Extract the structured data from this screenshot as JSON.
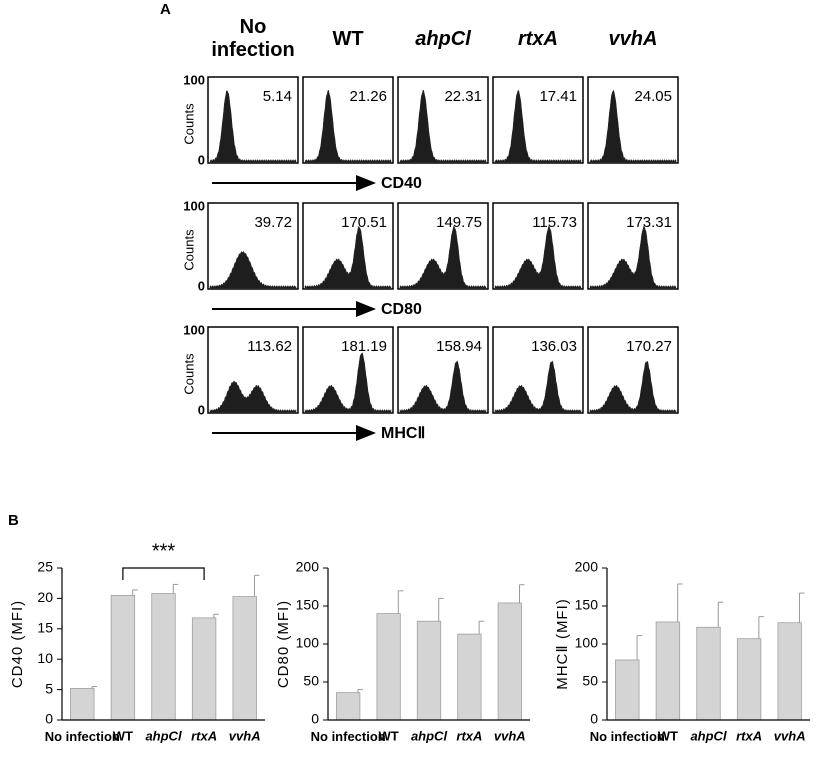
{
  "panel_labels": [
    "A",
    "B"
  ],
  "flow": {
    "columns": [
      "No infection",
      "WT",
      "ahpCl",
      "rtxA",
      "vvhA"
    ],
    "ylabel": "Counts",
    "yticks": [
      0,
      100
    ],
    "rows": [
      {
        "marker": "CD40",
        "values": [
          5.14,
          21.26,
          22.31,
          17.41,
          24.05
        ]
      },
      {
        "marker": "CD80",
        "values": [
          39.72,
          170.51,
          149.75,
          115.73,
          173.31
        ]
      },
      {
        "marker": "MHCⅡ",
        "values": [
          113.62,
          181.19,
          158.94,
          136.03,
          170.27
        ]
      }
    ]
  },
  "chart_data": [
    {
      "type": "bar",
      "ylabel": "CD40 (MFI)",
      "categories": [
        "No infection",
        "WT",
        "ahpCl",
        "rtxA",
        "vvhA"
      ],
      "values": [
        5.2,
        20.5,
        20.8,
        16.8,
        20.3
      ],
      "errors": [
        0.3,
        0.9,
        1.5,
        0.6,
        3.5
      ],
      "ylim": [
        0,
        25
      ],
      "yticks": [
        0,
        5,
        10,
        15,
        20,
        25
      ],
      "color": "#d4d4d4",
      "annotation": "***"
    },
    {
      "type": "bar",
      "ylabel": "CD80 (MFI)",
      "categories": [
        "No infection",
        "WT",
        "ahpCl",
        "rtxA",
        "vvhA"
      ],
      "values": [
        36,
        140,
        130,
        113,
        154
      ],
      "errors": [
        4,
        30,
        30,
        17,
        24
      ],
      "ylim": [
        0,
        200
      ],
      "yticks": [
        0,
        50,
        100,
        150,
        200
      ],
      "color": "#d4d4d4"
    },
    {
      "type": "bar",
      "ylabel": "MHCⅡ (MFI)",
      "categories": [
        "No infection",
        "WT",
        "ahpCl",
        "rtxA",
        "vvhA"
      ],
      "values": [
        79,
        129,
        122,
        107,
        128
      ],
      "errors": [
        32,
        50,
        33,
        29,
        39
      ],
      "ylim": [
        0,
        200
      ],
      "yticks": [
        0,
        50,
        100,
        150,
        200
      ],
      "color": "#d4d4d4"
    }
  ]
}
